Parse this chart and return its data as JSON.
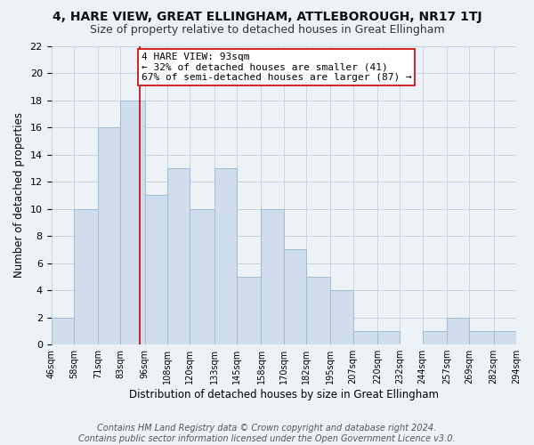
{
  "title": "4, HARE VIEW, GREAT ELLINGHAM, ATTLEBOROUGH, NR17 1TJ",
  "subtitle": "Size of property relative to detached houses in Great Ellingham",
  "xlabel": "Distribution of detached houses by size in Great Ellingham",
  "ylabel": "Number of detached properties",
  "footer_line1": "Contains HM Land Registry data © Crown copyright and database right 2024.",
  "footer_line2": "Contains public sector information licensed under the Open Government Licence v3.0.",
  "annotation_line1": "4 HARE VIEW: 93sqm",
  "annotation_line2": "← 32% of detached houses are smaller (41)",
  "annotation_line3": "67% of semi-detached houses are larger (87) →",
  "bin_edges": [
    46,
    58,
    71,
    83,
    96,
    108,
    120,
    133,
    145,
    158,
    170,
    182,
    195,
    207,
    220,
    232,
    244,
    257,
    269,
    282,
    294
  ],
  "bar_heights": [
    2,
    10,
    16,
    18,
    11,
    13,
    10,
    13,
    5,
    10,
    7,
    5,
    4,
    1,
    1,
    0,
    1,
    2,
    1,
    1
  ],
  "bar_color": "#cfdded",
  "bar_edgecolor": "#9bbdd4",
  "property_line_x": 93,
  "property_line_color": "#cc0000",
  "ylim": [
    0,
    22
  ],
  "yticks": [
    0,
    2,
    4,
    6,
    8,
    10,
    12,
    14,
    16,
    18,
    20,
    22
  ],
  "xtick_labels": [
    "46sqm",
    "58sqm",
    "71sqm",
    "83sqm",
    "96sqm",
    "108sqm",
    "120sqm",
    "133sqm",
    "145sqm",
    "158sqm",
    "170sqm",
    "182sqm",
    "195sqm",
    "207sqm",
    "220sqm",
    "232sqm",
    "244sqm",
    "257sqm",
    "269sqm",
    "282sqm",
    "294sqm"
  ],
  "grid_color": "#c8d4e0",
  "background_color": "#edf2f7",
  "annotation_box_facecolor": "#ffffff",
  "annotation_box_edgecolor": "#cc0000",
  "title_fontsize": 10,
  "subtitle_fontsize": 9,
  "xlabel_fontsize": 8.5,
  "ylabel_fontsize": 8.5,
  "footer_fontsize": 7,
  "annotation_fontsize": 8,
  "tick_fontsize": 7,
  "ytick_fontsize": 8
}
